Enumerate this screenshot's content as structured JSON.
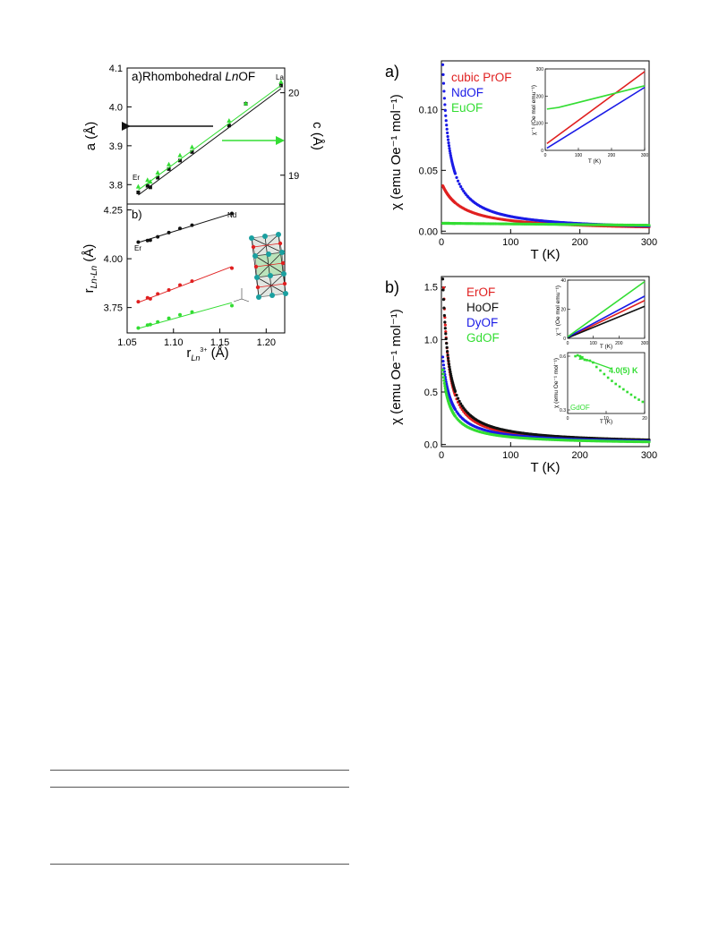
{
  "colors": {
    "black": "#111111",
    "red": "#e02020",
    "green": "#33dd33",
    "blue": "#1a1ae6"
  },
  "figures": [
    {
      "id": "left",
      "chart_data": [
        {
          "type": "scatter",
          "panel_label": "a)",
          "title_pre": "Rhombohedral ",
          "title_italic": "Ln",
          "title_post": "OF",
          "ylabel": "a (Å)",
          "ylabel_right": "c (Å)",
          "xlim": [
            1.05,
            1.22
          ],
          "ylim": [
            3.75,
            4.1
          ],
          "ylim_right": [
            18.65,
            20.3
          ],
          "yticks": [
            "3.8",
            "3.9",
            "4.0",
            "4.1"
          ],
          "yticks_right": [
            "19",
            "20"
          ],
          "point_labels": [
            "Er",
            "La"
          ],
          "series": [
            {
              "name": "a",
              "color": "black",
              "axis": "left",
              "x": [
                1.062,
                1.072,
                1.075,
                1.083,
                1.095,
                1.107,
                1.12,
                1.16,
                1.178,
                1.216
              ],
              "y": [
                3.78,
                3.797,
                3.793,
                3.818,
                3.84,
                3.862,
                3.884,
                3.952,
                4.008,
                4.055
              ],
              "fit": [
                [
                  1.062,
                  3.773
                ],
                [
                  1.216,
                  4.047
                ]
              ]
            },
            {
              "name": "c",
              "color": "green",
              "axis": "right",
              "x": [
                1.062,
                1.072,
                1.075,
                1.083,
                1.095,
                1.107,
                1.12,
                1.16,
                1.178,
                1.216
              ],
              "y": [
                18.86,
                18.94,
                18.92,
                19.03,
                19.13,
                19.24,
                19.34,
                19.66,
                19.87,
                20.13
              ],
              "fit": [
                [
                  1.062,
                  18.82
                ],
                [
                  1.216,
                  20.09
                ]
              ]
            }
          ]
        },
        {
          "type": "scatter",
          "panel_label": "b)",
          "ylabel": "r",
          "ylabel_sub": "Ln-Ln",
          "ylabel_post": " (Å)",
          "xlabel": "r",
          "xlabel_sub": "Ln",
          "xlabel_sup": "3+",
          "xlabel_post": " (Å)",
          "xlim": [
            1.05,
            1.22
          ],
          "ylim": [
            3.62,
            4.28
          ],
          "xticks": [
            "1.05",
            "1.10",
            "1.15",
            "1.20"
          ],
          "yticks": [
            "3.75",
            "4.00",
            "4.25"
          ],
          "point_labels": [
            "Er",
            "Nd"
          ],
          "series": [
            {
              "color": "black",
              "x": [
                1.062,
                1.072,
                1.075,
                1.083,
                1.095,
                1.107,
                1.12,
                1.163
              ],
              "y": [
                4.085,
                4.093,
                4.095,
                4.112,
                4.134,
                4.155,
                4.172,
                4.232
              ],
              "fit": [
                [
                  1.062,
                  4.083
                ],
                [
                  1.163,
                  4.232
                ]
              ]
            },
            {
              "color": "red",
              "x": [
                1.062,
                1.072,
                1.075,
                1.083,
                1.095,
                1.107,
                1.12,
                1.163
              ],
              "y": [
                3.78,
                3.8,
                3.795,
                3.82,
                3.84,
                3.865,
                3.885,
                3.952
              ],
              "fit": [
                [
                  1.062,
                  3.776
                ],
                [
                  1.163,
                  3.96
                ]
              ]
            },
            {
              "color": "green",
              "x": [
                1.062,
                1.072,
                1.075,
                1.083,
                1.095,
                1.107,
                1.12,
                1.163
              ],
              "y": [
                3.645,
                3.66,
                3.663,
                3.676,
                3.695,
                3.713,
                3.727,
                3.76
              ],
              "fit": [
                [
                  1.062,
                  3.643
                ],
                [
                  1.163,
                  3.775
                ]
              ]
            }
          ]
        }
      ]
    },
    {
      "id": "right-a",
      "chart_data": {
        "type": "scatter",
        "panel_label": "a)",
        "ylabel": "χ (emu Oe⁻¹ mol⁻¹)",
        "xlabel": "T (K)",
        "xlim": [
          0,
          300
        ],
        "ylim": [
          -0.002,
          0.14
        ],
        "xticks": [
          "0",
          "100",
          "200",
          "300"
        ],
        "yticks": [
          "0.00",
          "0.05",
          "0.10"
        ],
        "legend": [
          "cubic PrOF",
          "NdOF",
          "EuOF"
        ],
        "legend_position": "top-right",
        "series": [
          {
            "name": "cubic PrOF",
            "color": "red",
            "C": 1.12,
            "theta": 28,
            "chi0": 0.0
          },
          {
            "name": "NdOF",
            "color": "blue",
            "C": 1.3,
            "theta": 7.5,
            "chi0": 0.0
          },
          {
            "name": "EuOF",
            "color": "green",
            "C": 0,
            "theta": 0,
            "chi0": 0.0065,
            "slope": -5.5e-06
          }
        ],
        "inset": {
          "ylabel": "χ⁻¹ (Oe mol emu⁻¹)",
          "xlabel": "T (K)",
          "xlim": [
            0,
            300
          ],
          "ylim": [
            0,
            300
          ],
          "xticks": [
            "0",
            "100",
            "200",
            "300"
          ],
          "yticks": [
            "0",
            "100",
            "200",
            "300"
          ],
          "series": [
            {
              "color": "red",
              "x": [
                5,
                300
              ],
              "y": [
                25,
                290
              ]
            },
            {
              "color": "blue",
              "x": [
                5,
                300
              ],
              "y": [
                8,
                232
              ]
            },
            {
              "color": "green",
              "x": [
                5,
                40,
                300
              ],
              "y": [
                152,
                158,
                238
              ]
            }
          ]
        }
      }
    },
    {
      "id": "right-b",
      "chart_data": {
        "type": "scatter",
        "panel_label": "b)",
        "ylabel": "χ (emu Oe⁻¹ mol⁻¹)",
        "xlabel": "T (K)",
        "xlim": [
          0,
          300
        ],
        "ylim": [
          -0.02,
          1.6
        ],
        "xticks": [
          "0",
          "100",
          "200",
          "300"
        ],
        "yticks": [
          "0.0",
          "0.5",
          "1.0",
          "1.5"
        ],
        "legend": [
          "ErOF",
          "HoOF",
          "DyOF",
          "GdOF"
        ],
        "legend_position": "top-right",
        "series": [
          {
            "name": "ErOF",
            "color": "red",
            "C": 11.5,
            "theta": 4.5,
            "chi0": 0
          },
          {
            "name": "HoOF",
            "color": "black",
            "C": 13.4,
            "theta": 6.5,
            "chi0": 0
          },
          {
            "name": "DyOF",
            "color": "blue",
            "C": 10.0,
            "theta": 10.0,
            "chi0": 0
          },
          {
            "name": "GdOF",
            "color": "green",
            "C": 7.8,
            "theta": 9.0,
            "chi0": 0
          }
        ],
        "inset1": {
          "ylabel": "χ⁻¹ (Oe mol emu⁻¹)",
          "xlabel": "T (K)",
          "xlim": [
            0,
            300
          ],
          "ylim": [
            0,
            40
          ],
          "xticks": [
            "0",
            "100",
            "200",
            "300"
          ],
          "yticks": [
            "0",
            "20",
            "40"
          ],
          "series": [
            {
              "color": "red",
              "x": [
                0,
                300
              ],
              "y": [
                0.4,
                26
              ]
            },
            {
              "color": "black",
              "x": [
                0,
                300
              ],
              "y": [
                0.3,
                22
              ]
            },
            {
              "color": "blue",
              "x": [
                0,
                300
              ],
              "y": [
                0.8,
                29
              ]
            },
            {
              "color": "green",
              "x": [
                0,
                300
              ],
              "y": [
                1.0,
                39
              ]
            }
          ]
        },
        "inset2": {
          "ylabel": "χ (emu Oe⁻¹ mol⁻¹)",
          "xlabel": "T (K)",
          "xlim": [
            0,
            20
          ],
          "ylim": [
            0.28,
            0.62
          ],
          "xticks": [
            "0",
            "10",
            "20"
          ],
          "yticks": [
            "0.3",
            "0.6"
          ],
          "annotation": "4.0(5) K",
          "label": "GdOF",
          "x": [
            2,
            2.6,
            3.2,
            3.8,
            4.4,
            5,
            5.8,
            6.6,
            7.5,
            8.5,
            9.5,
            10.5,
            11.5,
            12.5,
            13.5,
            14.5,
            15.5,
            16.5,
            17.5,
            18.5,
            19.5
          ],
          "y": [
            0.6,
            0.605,
            0.6,
            0.594,
            0.58,
            0.578,
            0.575,
            0.565,
            0.54,
            0.52,
            0.5,
            0.48,
            0.462,
            0.445,
            0.43,
            0.415,
            0.4,
            0.385,
            0.37,
            0.357,
            0.345
          ]
        }
      }
    }
  ]
}
